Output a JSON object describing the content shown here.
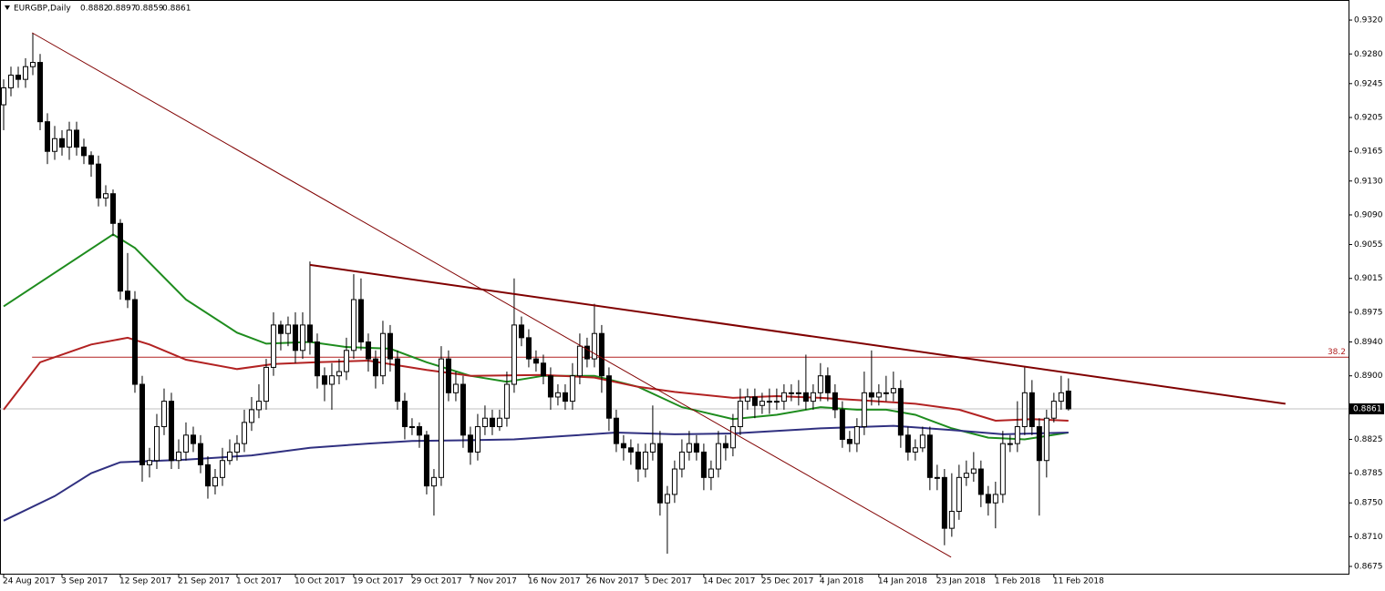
{
  "chart_data": {
    "type": "candlestick",
    "title": "EURGBP,Daily",
    "ohlc": [
      [
        0.922,
        0.925,
        0.919,
        0.924
      ],
      [
        0.924,
        0.9265,
        0.923,
        0.9255
      ],
      [
        0.9255,
        0.9265,
        0.924,
        0.925
      ],
      [
        0.925,
        0.9275,
        0.924,
        0.9265
      ],
      [
        0.9265,
        0.9305,
        0.9255,
        0.927
      ],
      [
        0.927,
        0.928,
        0.919,
        0.92
      ],
      [
        0.92,
        0.921,
        0.915,
        0.9165
      ],
      [
        0.9165,
        0.9195,
        0.9155,
        0.918
      ],
      [
        0.918,
        0.919,
        0.916,
        0.917
      ],
      [
        0.917,
        0.92,
        0.9155,
        0.919
      ],
      [
        0.919,
        0.92,
        0.916,
        0.917
      ],
      [
        0.917,
        0.918,
        0.915,
        0.916
      ],
      [
        0.916,
        0.9165,
        0.9135,
        0.915
      ],
      [
        0.915,
        0.916,
        0.91,
        0.911
      ],
      [
        0.911,
        0.9125,
        0.91,
        0.9115
      ],
      [
        0.9115,
        0.912,
        0.9065,
        0.908
      ],
      [
        0.908,
        0.9085,
        0.899,
        0.9
      ],
      [
        0.9,
        0.9045,
        0.898,
        0.899
      ],
      [
        0.899,
        0.9,
        0.888,
        0.889
      ],
      [
        0.889,
        0.89,
        0.8775,
        0.8795
      ],
      [
        0.8795,
        0.8815,
        0.878,
        0.88
      ],
      [
        0.88,
        0.8855,
        0.879,
        0.884
      ],
      [
        0.884,
        0.8885,
        0.883,
        0.887
      ],
      [
        0.887,
        0.888,
        0.879,
        0.88
      ],
      [
        0.88,
        0.8825,
        0.879,
        0.881
      ],
      [
        0.881,
        0.8845,
        0.88,
        0.883
      ],
      [
        0.883,
        0.884,
        0.881,
        0.882
      ],
      [
        0.882,
        0.883,
        0.8785,
        0.8795
      ],
      [
        0.8795,
        0.8805,
        0.8755,
        0.877
      ],
      [
        0.877,
        0.879,
        0.876,
        0.878
      ],
      [
        0.878,
        0.8815,
        0.877,
        0.88
      ],
      [
        0.88,
        0.8825,
        0.8795,
        0.881
      ],
      [
        0.881,
        0.883,
        0.88,
        0.882
      ],
      [
        0.882,
        0.886,
        0.881,
        0.8845
      ],
      [
        0.8845,
        0.8875,
        0.8835,
        0.886
      ],
      [
        0.886,
        0.889,
        0.885,
        0.887
      ],
      [
        0.887,
        0.892,
        0.886,
        0.891
      ],
      [
        0.891,
        0.8975,
        0.89,
        0.896
      ],
      [
        0.896,
        0.8965,
        0.893,
        0.895
      ],
      [
        0.895,
        0.897,
        0.8935,
        0.896
      ],
      [
        0.896,
        0.8975,
        0.8915,
        0.893
      ],
      [
        0.893,
        0.8975,
        0.892,
        0.896
      ],
      [
        0.896,
        0.9035,
        0.8925,
        0.894
      ],
      [
        0.894,
        0.895,
        0.8885,
        0.89
      ],
      [
        0.89,
        0.891,
        0.887,
        0.889
      ],
      [
        0.889,
        0.8915,
        0.886,
        0.89
      ],
      [
        0.89,
        0.892,
        0.889,
        0.8905
      ],
      [
        0.8905,
        0.8945,
        0.8895,
        0.893
      ],
      [
        0.893,
        0.902,
        0.892,
        0.899
      ],
      [
        0.899,
        0.9015,
        0.893,
        0.894
      ],
      [
        0.894,
        0.895,
        0.8905,
        0.892
      ],
      [
        0.892,
        0.893,
        0.8885,
        0.89
      ],
      [
        0.89,
        0.8965,
        0.889,
        0.895
      ],
      [
        0.895,
        0.896,
        0.8905,
        0.892
      ],
      [
        0.892,
        0.893,
        0.886,
        0.887
      ],
      [
        0.887,
        0.888,
        0.8825,
        0.884
      ],
      [
        0.884,
        0.885,
        0.883,
        0.884
      ],
      [
        0.884,
        0.8845,
        0.8815,
        0.883
      ],
      [
        0.883,
        0.8835,
        0.876,
        0.877
      ],
      [
        0.877,
        0.879,
        0.8735,
        0.878
      ],
      [
        0.878,
        0.8935,
        0.877,
        0.892
      ],
      [
        0.892,
        0.893,
        0.887,
        0.888
      ],
      [
        0.888,
        0.8905,
        0.887,
        0.889
      ],
      [
        0.889,
        0.89,
        0.8815,
        0.883
      ],
      [
        0.883,
        0.884,
        0.8795,
        0.881
      ],
      [
        0.881,
        0.8855,
        0.88,
        0.884
      ],
      [
        0.884,
        0.8865,
        0.883,
        0.885
      ],
      [
        0.885,
        0.886,
        0.883,
        0.884
      ],
      [
        0.884,
        0.886,
        0.8835,
        0.885
      ],
      [
        0.885,
        0.8905,
        0.884,
        0.889
      ],
      [
        0.889,
        0.9015,
        0.888,
        0.896
      ],
      [
        0.896,
        0.897,
        0.8935,
        0.8945
      ],
      [
        0.8945,
        0.8955,
        0.891,
        0.892
      ],
      [
        0.892,
        0.893,
        0.8905,
        0.8915
      ],
      [
        0.8915,
        0.8925,
        0.889,
        0.89
      ],
      [
        0.89,
        0.891,
        0.886,
        0.8875
      ],
      [
        0.8875,
        0.889,
        0.8865,
        0.888
      ],
      [
        0.888,
        0.889,
        0.886,
        0.887
      ],
      [
        0.887,
        0.8915,
        0.886,
        0.89
      ],
      [
        0.89,
        0.895,
        0.889,
        0.8935
      ],
      [
        0.8935,
        0.8945,
        0.891,
        0.892
      ],
      [
        0.892,
        0.8985,
        0.891,
        0.895
      ],
      [
        0.895,
        0.896,
        0.888,
        0.89
      ],
      [
        0.89,
        0.891,
        0.8835,
        0.885
      ],
      [
        0.885,
        0.886,
        0.881,
        0.882
      ],
      [
        0.882,
        0.883,
        0.88,
        0.8815
      ],
      [
        0.8815,
        0.8825,
        0.8795,
        0.881
      ],
      [
        0.881,
        0.882,
        0.8775,
        0.879
      ],
      [
        0.879,
        0.882,
        0.878,
        0.881
      ],
      [
        0.881,
        0.8865,
        0.88,
        0.882
      ],
      [
        0.882,
        0.8835,
        0.8735,
        0.875
      ],
      [
        0.875,
        0.877,
        0.869,
        0.876
      ],
      [
        0.876,
        0.88,
        0.875,
        0.879
      ],
      [
        0.879,
        0.8825,
        0.878,
        0.881
      ],
      [
        0.881,
        0.8835,
        0.88,
        0.882
      ],
      [
        0.882,
        0.883,
        0.88,
        0.881
      ],
      [
        0.881,
        0.882,
        0.8765,
        0.878
      ],
      [
        0.878,
        0.88,
        0.8765,
        0.879
      ],
      [
        0.879,
        0.8835,
        0.878,
        0.882
      ],
      [
        0.882,
        0.883,
        0.88,
        0.8815
      ],
      [
        0.8815,
        0.8855,
        0.8805,
        0.884
      ],
      [
        0.884,
        0.8885,
        0.883,
        0.887
      ],
      [
        0.887,
        0.8885,
        0.886,
        0.8875
      ],
      [
        0.8875,
        0.8885,
        0.885,
        0.8865
      ],
      [
        0.8865,
        0.888,
        0.8855,
        0.887
      ],
      [
        0.887,
        0.8885,
        0.8855,
        0.887
      ],
      [
        0.887,
        0.8885,
        0.886,
        0.887
      ],
      [
        0.887,
        0.889,
        0.886,
        0.888
      ],
      [
        0.888,
        0.889,
        0.887,
        0.888
      ],
      [
        0.888,
        0.8895,
        0.8865,
        0.888
      ],
      [
        0.888,
        0.8925,
        0.886,
        0.887
      ],
      [
        0.887,
        0.889,
        0.886,
        0.888
      ],
      [
        0.888,
        0.8915,
        0.887,
        0.89
      ],
      [
        0.89,
        0.891,
        0.887,
        0.888
      ],
      [
        0.888,
        0.889,
        0.885,
        0.886
      ],
      [
        0.886,
        0.887,
        0.8815,
        0.8825
      ],
      [
        0.8825,
        0.8835,
        0.881,
        0.882
      ],
      [
        0.882,
        0.885,
        0.881,
        0.884
      ],
      [
        0.884,
        0.8905,
        0.883,
        0.888
      ],
      [
        0.888,
        0.893,
        0.8865,
        0.8875
      ],
      [
        0.8875,
        0.889,
        0.8865,
        0.888
      ],
      [
        0.888,
        0.89,
        0.887,
        0.888
      ],
      [
        0.888,
        0.8905,
        0.887,
        0.8885
      ],
      [
        0.8885,
        0.8895,
        0.8815,
        0.883
      ],
      [
        0.883,
        0.884,
        0.88,
        0.881
      ],
      [
        0.881,
        0.8825,
        0.88,
        0.8815
      ],
      [
        0.8815,
        0.884,
        0.881,
        0.883
      ],
      [
        0.883,
        0.884,
        0.8765,
        0.878
      ],
      [
        0.878,
        0.8795,
        0.8765,
        0.878
      ],
      [
        0.878,
        0.879,
        0.87,
        0.872
      ],
      [
        0.872,
        0.8785,
        0.871,
        0.874
      ],
      [
        0.874,
        0.8795,
        0.873,
        0.878
      ],
      [
        0.878,
        0.88,
        0.877,
        0.8785
      ],
      [
        0.8785,
        0.881,
        0.8775,
        0.879
      ],
      [
        0.879,
        0.88,
        0.8745,
        0.876
      ],
      [
        0.876,
        0.877,
        0.8735,
        0.875
      ],
      [
        0.875,
        0.8775,
        0.872,
        0.876
      ],
      [
        0.876,
        0.8835,
        0.875,
        0.882
      ],
      [
        0.882,
        0.883,
        0.881,
        0.882
      ],
      [
        0.882,
        0.887,
        0.881,
        0.884
      ],
      [
        0.884,
        0.891,
        0.883,
        0.888
      ],
      [
        0.888,
        0.8895,
        0.883,
        0.884
      ],
      [
        0.884,
        0.885,
        0.8735,
        0.88
      ],
      [
        0.88,
        0.886,
        0.878,
        0.885
      ],
      [
        0.885,
        0.888,
        0.8845,
        0.887
      ],
      [
        0.887,
        0.89,
        0.886,
        0.888
      ],
      [
        0.8882,
        0.8897,
        0.8859,
        0.8861
      ]
    ],
    "moving_averages": [
      {
        "color": "#1e8c1e",
        "x": [
          0,
          15,
          18,
          25,
          32,
          36,
          42,
          47,
          53,
          58,
          64,
          69,
          74,
          81,
          87,
          93,
          100,
          106,
          112,
          117,
          121,
          125,
          130,
          135,
          140,
          146
        ],
        "values": [
          0.8982,
          0.9067,
          0.9051,
          0.899,
          0.8951,
          0.8938,
          0.894,
          0.8934,
          0.8932,
          0.8916,
          0.89,
          0.8893,
          0.89,
          0.89,
          0.8887,
          0.8863,
          0.8849,
          0.8854,
          0.8863,
          0.886,
          0.886,
          0.8854,
          0.8838,
          0.8827,
          0.8825,
          0.8833
        ]
      },
      {
        "color": "#b22222",
        "x": [
          0,
          5,
          12,
          17,
          20,
          25,
          32,
          37,
          43,
          50,
          58,
          64,
          74,
          81,
          87,
          92,
          100,
          106,
          112,
          118,
          125,
          131,
          136,
          141,
          146
        ],
        "values": [
          0.886,
          0.8916,
          0.8937,
          0.8945,
          0.8937,
          0.8919,
          0.8908,
          0.8914,
          0.8916,
          0.8918,
          0.8907,
          0.89,
          0.8901,
          0.8898,
          0.8887,
          0.8881,
          0.8874,
          0.8876,
          0.8874,
          0.8871,
          0.8867,
          0.886,
          0.8847,
          0.8849,
          0.8847
        ]
      },
      {
        "color": "#303080",
        "x": [
          0,
          7,
          12,
          16,
          25,
          34,
          42,
          50,
          56,
          64,
          70,
          77,
          84,
          92,
          100,
          112,
          122,
          130,
          137,
          146
        ],
        "values": [
          0.8729,
          0.8758,
          0.8785,
          0.8798,
          0.8801,
          0.8806,
          0.8815,
          0.882,
          0.8823,
          0.8824,
          0.8825,
          0.8829,
          0.8833,
          0.8831,
          0.8832,
          0.8838,
          0.8841,
          0.8836,
          0.8831,
          0.8833
        ]
      }
    ],
    "trendlines": [
      {
        "color": "#800000",
        "style": "thin",
        "x": [
          3.9,
          129.9
        ],
        "values": [
          0.9305,
          0.8686
        ]
      },
      {
        "color": "#800000",
        "style": "thick",
        "x": [
          42,
          175.75
        ],
        "values": [
          0.9031,
          0.8867
        ]
      }
    ],
    "fib_level": 38.2,
    "fib_price": 0.8922,
    "fib_color": "#b22222",
    "xlim": [
      -0.5,
      184.4
    ],
    "ylim": [
      0.86664,
      0.93437
    ],
    "xticks": [
      {
        "value": 0,
        "label": "24 Aug 2017"
      },
      {
        "value": 8,
        "label": "3 Sep 2017"
      },
      {
        "value": 16,
        "label": "12 Sep 2017"
      },
      {
        "value": 24,
        "label": "21 Sep 2017"
      },
      {
        "value": 32,
        "label": "1 Oct 2017"
      },
      {
        "value": 40,
        "label": "10 Oct 2017"
      },
      {
        "value": 48,
        "label": "19 Oct 2017"
      },
      {
        "value": 56,
        "label": "29 Oct 2017"
      },
      {
        "value": 64,
        "label": "7 Nov 2017"
      },
      {
        "value": 72,
        "label": "16 Nov 2017"
      },
      {
        "value": 80,
        "label": "26 Nov 2017"
      },
      {
        "value": 88,
        "label": "5 Dec 2017"
      },
      {
        "value": 96,
        "label": "14 Dec 2017"
      },
      {
        "value": 104,
        "label": "25 Dec 2017"
      },
      {
        "value": 112,
        "label": "4 Jan 2018"
      },
      {
        "value": 120,
        "label": "14 Jan 2018"
      },
      {
        "value": 128,
        "label": "23 Jan 2018"
      },
      {
        "value": 136,
        "label": "1 Feb 2018"
      },
      {
        "value": 144,
        "label": "11 Feb 2018"
      }
    ],
    "yticks": [
      {
        "value": 0.932,
        "label": "0.9320"
      },
      {
        "value": 0.928,
        "label": "0.9280"
      },
      0.9245,
      0.9205,
      0.9165,
      {
        "value": 0.913,
        "label": "0.9130"
      },
      {
        "value": 0.909,
        "label": "0.9090"
      },
      0.9055,
      0.9015,
      0.8975,
      {
        "value": 0.894,
        "label": "0.8940"
      },
      {
        "value": 0.89,
        "label": "0.8900"
      },
      0.8825,
      0.8785,
      {
        "value": 0.875,
        "label": "0.8750"
      },
      {
        "value": 0.871,
        "label": "0.8710"
      },
      0.8675
    ]
  }
}
